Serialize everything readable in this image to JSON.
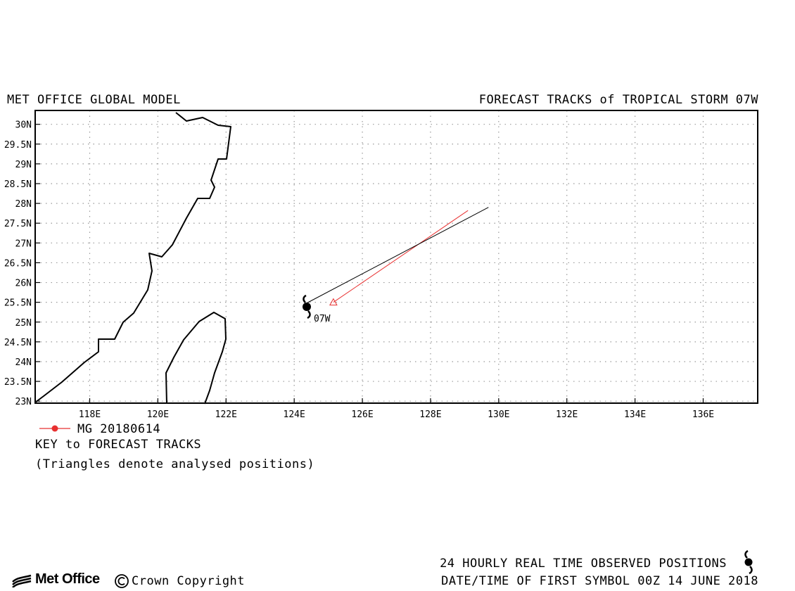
{
  "header": {
    "left_title": "MET OFFICE GLOBAL MODEL",
    "right_title": "FORECAST TRACKS of TROPICAL STORM 07W"
  },
  "map": {
    "lon_range": [
      116.4,
      137.6
    ],
    "lat_range": [
      22.95,
      30.35
    ],
    "lat_ticks": [
      "30N",
      "29.5N",
      "29N",
      "28.5N",
      "28N",
      "27.5N",
      "27N",
      "26.5N",
      "26N",
      "25.5N",
      "25N",
      "24.5N",
      "24N",
      "23.5N",
      "23N"
    ],
    "lon_ticks": [
      "118E",
      "120E",
      "122E",
      "124E",
      "126E",
      "128E",
      "130E",
      "132E",
      "134E",
      "136E"
    ],
    "grid": "dotted",
    "coastline_color": "#000000",
    "storm_label": "07W",
    "storm_icon": "tropical-storm-icon"
  },
  "tracks": [
    {
      "name": "MG 20180614",
      "color": "#e83030",
      "points": [
        [
          125.15,
          25.5
        ],
        [
          129.1,
          27.82
        ]
      ],
      "analysed_triangle_at": [
        125.15,
        25.5
      ]
    },
    {
      "name": "observed",
      "color": "#000000",
      "points": [
        [
          124.3,
          25.45
        ],
        [
          129.7,
          27.9
        ]
      ]
    }
  ],
  "legend": {
    "entry_label": "MG 20180614",
    "key_title": "KEY to FORECAST TRACKS",
    "key_note": "(Triangles denote analysed positions)"
  },
  "footer": {
    "observed_text": "24 HOURLY REAL TIME OBSERVED POSITIONS",
    "date_text": "DATE/TIME OF FIRST SYMBOL 00Z 14 JUNE 2018",
    "logo_text": "Met Office",
    "copyright_text": "Crown Copyright"
  }
}
